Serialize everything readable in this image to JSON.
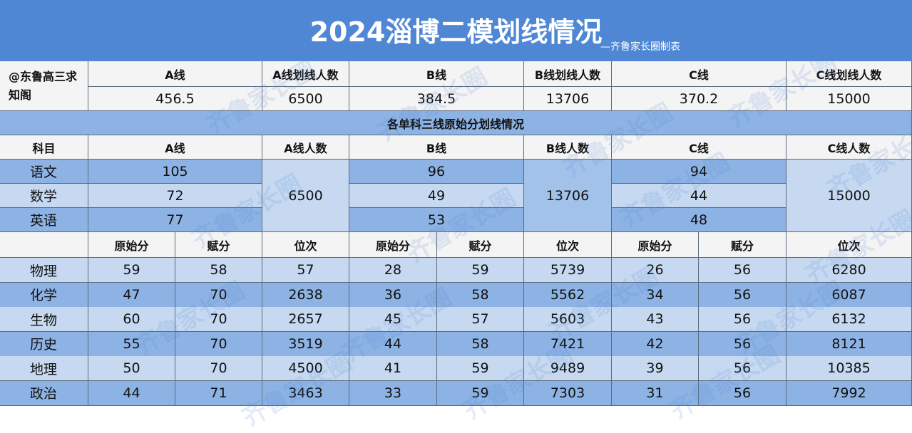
{
  "header": {
    "title": "2024淄博二模划线情况",
    "subtitle": "—齐鲁家长圈制表"
  },
  "overall": {
    "note": "@东鲁高三求知阁",
    "headers": [
      "A线",
      "A线划线人数",
      "B线",
      "B线划线人数",
      "C线",
      "C线划线人数"
    ],
    "values": [
      "456.5",
      "6500",
      "384.5",
      "13706",
      "370.2",
      "15000"
    ]
  },
  "section_title": "各单科三线原始分划线情况",
  "single": {
    "headers": [
      "科目",
      "A线",
      "A线人数",
      "B线",
      "B线人数",
      "C线",
      "C线人数"
    ],
    "rows": [
      {
        "subject": "语文",
        "a": "105",
        "b": "96",
        "c": "94"
      },
      {
        "subject": "数学",
        "a": "72",
        "b": "49",
        "c": "44"
      },
      {
        "subject": "英语",
        "a": "77",
        "b": "53",
        "c": "48"
      }
    ],
    "a_count": "6500",
    "b_count": "13706",
    "c_count": "15000"
  },
  "elective": {
    "headers": [
      "原始分",
      "赋分",
      "位次",
      "原始分",
      "赋分",
      "位次",
      "原始分",
      "赋分",
      "位次"
    ],
    "rows": [
      {
        "subject": "物理",
        "cells": [
          "59",
          "58",
          "57",
          "28",
          "59",
          "5739",
          "26",
          "56",
          "6280"
        ]
      },
      {
        "subject": "化学",
        "cells": [
          "47",
          "70",
          "2638",
          "36",
          "58",
          "5562",
          "34",
          "56",
          "6087"
        ]
      },
      {
        "subject": "生物",
        "cells": [
          "60",
          "70",
          "2657",
          "45",
          "57",
          "5603",
          "43",
          "56",
          "6132"
        ]
      },
      {
        "subject": "历史",
        "cells": [
          "55",
          "70",
          "3519",
          "44",
          "58",
          "7421",
          "42",
          "56",
          "8121"
        ]
      },
      {
        "subject": "地理",
        "cells": [
          "50",
          "70",
          "4500",
          "41",
          "59",
          "9489",
          "39",
          "56",
          "10385"
        ]
      },
      {
        "subject": "政治",
        "cells": [
          "44",
          "71",
          "3463",
          "33",
          "59",
          "7303",
          "31",
          "56",
          "7992"
        ]
      }
    ]
  },
  "watermark": "齐鲁家长圈"
}
